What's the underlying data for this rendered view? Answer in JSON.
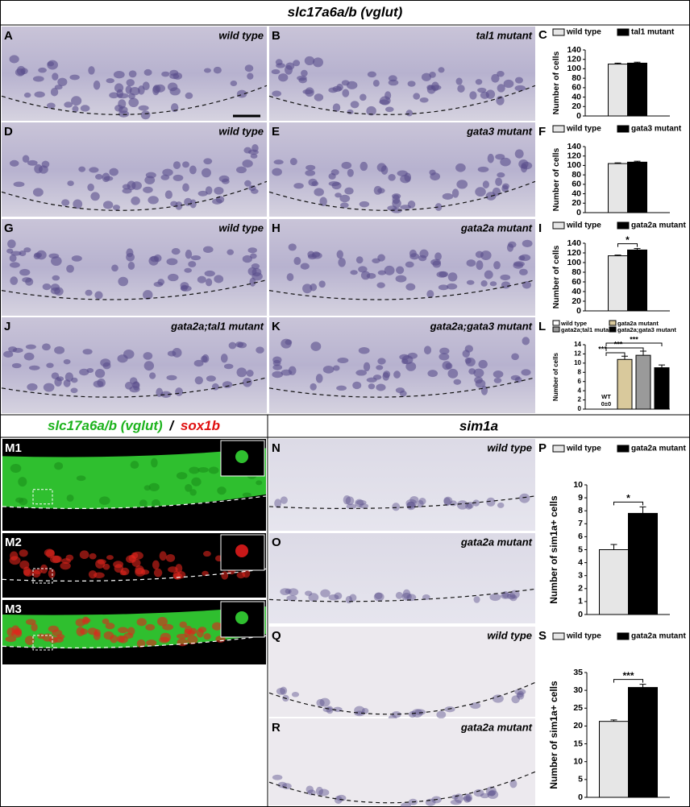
{
  "header": {
    "title": "slc17a6a/b (vglut)"
  },
  "fluorescence_header": {
    "green": "slc17a6a/b (vglut)",
    "separator": "/",
    "red": "sox1b"
  },
  "sim_header": {
    "title": "sim1a"
  },
  "panels": [
    {
      "letter": "A",
      "label": "wild type"
    },
    {
      "letter": "B",
      "label": "tal1 mutant"
    },
    {
      "letter": "D",
      "label": "wild type"
    },
    {
      "letter": "E",
      "label": "gata3 mutant"
    },
    {
      "letter": "G",
      "label": "wild type"
    },
    {
      "letter": "H",
      "label": "gata2a mutant"
    },
    {
      "letter": "J",
      "label": "gata2a;tal1 mutant"
    },
    {
      "letter": "K",
      "label": "gata2a;gata3 mutant"
    },
    {
      "letter": "M1"
    },
    {
      "letter": "M2"
    },
    {
      "letter": "M3"
    },
    {
      "letter": "N",
      "label": "wild type"
    },
    {
      "letter": "O",
      "label": "gata2a mutant"
    },
    {
      "letter": "Q",
      "label": "wild type"
    },
    {
      "letter": "R",
      "label": "gata2a mutant"
    }
  ],
  "chart_data": [
    {
      "type": "bar",
      "letter": "C",
      "ylabel": "Number of cells",
      "ylim": [
        0,
        140
      ],
      "yticks": [
        0,
        20,
        40,
        60,
        80,
        100,
        120,
        140
      ],
      "series": [
        {
          "name": "wild type",
          "color": "#e6e6e6",
          "values": [
            110
          ],
          "errors": [
            2
          ]
        },
        {
          "name": "tal1 mutant",
          "color": "#000000",
          "values": [
            112
          ],
          "errors": [
            2
          ]
        }
      ]
    },
    {
      "type": "bar",
      "letter": "F",
      "ylabel": "Number of cells",
      "ylim": [
        0,
        140
      ],
      "yticks": [
        0,
        20,
        40,
        60,
        80,
        100,
        120,
        140
      ],
      "series": [
        {
          "name": "wild type",
          "color": "#e6e6e6",
          "values": [
            104
          ],
          "errors": [
            1.5
          ]
        },
        {
          "name": "gata3 mutant",
          "color": "#000000",
          "values": [
            107
          ],
          "errors": [
            2
          ]
        }
      ]
    },
    {
      "type": "bar",
      "letter": "I",
      "ylabel": "Number of cells",
      "ylim": [
        0,
        140
      ],
      "yticks": [
        0,
        20,
        40,
        60,
        80,
        100,
        120,
        140
      ],
      "annotations": [
        "*"
      ],
      "series": [
        {
          "name": "wild type",
          "color": "#e6e6e6",
          "values": [
            114
          ],
          "errors": [
            1.5
          ]
        },
        {
          "name": "gata2a mutant",
          "color": "#000000",
          "values": [
            126
          ],
          "errors": [
            3
          ]
        }
      ]
    },
    {
      "type": "bar",
      "letter": "L",
      "ylabel": "Number of cells",
      "ylim": [
        0,
        14
      ],
      "yticks": [
        0,
        2,
        4,
        6,
        8,
        10,
        12,
        14
      ],
      "annotations": [
        "***",
        "***",
        "***"
      ],
      "x_note": "WT",
      "series": [
        {
          "name": "wild type",
          "color": "#ffffff",
          "values": [
            0
          ],
          "errors": [
            0
          ],
          "value_labels": [
            "0±0"
          ]
        },
        {
          "name": "gata2a mutant",
          "color": "#d9c99c",
          "values": [
            10.8
          ],
          "errors": [
            0.7
          ]
        },
        {
          "name": "gata2a;tal1 mutant",
          "color": "#9a9a9a",
          "values": [
            11.7
          ],
          "errors": [
            0.9
          ]
        },
        {
          "name": "gata2a;gata3 mutant",
          "color": "#000000",
          "values": [
            9
          ],
          "errors": [
            0.6
          ]
        }
      ]
    },
    {
      "type": "bar",
      "letter": "P",
      "ylabel": "Number of sim1a+ cells",
      "ylim": [
        0,
        10
      ],
      "yticks": [
        0,
        1,
        2,
        3,
        4,
        5,
        6,
        7,
        8,
        9,
        10
      ],
      "annotations": [
        "*"
      ],
      "series": [
        {
          "name": "wild type",
          "color": "#e6e6e6",
          "values": [
            5
          ],
          "errors": [
            0.4
          ]
        },
        {
          "name": "gata2a mutant",
          "color": "#000000",
          "values": [
            7.8
          ],
          "errors": [
            0.5
          ]
        }
      ]
    },
    {
      "type": "bar",
      "letter": "S",
      "ylabel": "Number of sim1a+ cells",
      "ylim": [
        0,
        35
      ],
      "yticks": [
        0,
        5,
        10,
        15,
        20,
        25,
        30,
        35
      ],
      "annotations": [
        "***"
      ],
      "series": [
        {
          "name": "wild type",
          "color": "#e6e6e6",
          "values": [
            21.3
          ],
          "errors": [
            0.4
          ]
        },
        {
          "name": "gata2a mutant",
          "color": "#000000",
          "values": [
            30.8
          ],
          "errors": [
            0.9
          ]
        }
      ]
    }
  ]
}
